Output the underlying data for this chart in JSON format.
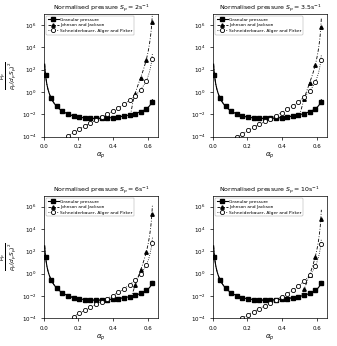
{
  "titles": [
    "Normalised pressure $S_p = 2\\mathrm{s}^{-1}$",
    "Normalised pressure $S_p = 3.5\\mathrm{s}^{-1}$",
    "Normalised pressure $S_p = 6\\mathrm{s}^{-1}$",
    "Normalised pressure $S_p = 10\\mathrm{s}^{-1}$"
  ],
  "xlabel": "$\\alpha_p$",
  "ylabel": "$\\frac{p_p}{\\rho_p (d_p S_p)^2}$",
  "legend_labels": [
    "Granular pressure",
    "Johnson and Jackson",
    "Schneiderbauer, Alger and Pirker"
  ],
  "alpha_max": 0.6349,
  "S_values": [
    2.0,
    3.5,
    6.0,
    10.0
  ],
  "ylim_log": [
    -4,
    7
  ],
  "xlim": [
    0.0,
    0.66
  ]
}
